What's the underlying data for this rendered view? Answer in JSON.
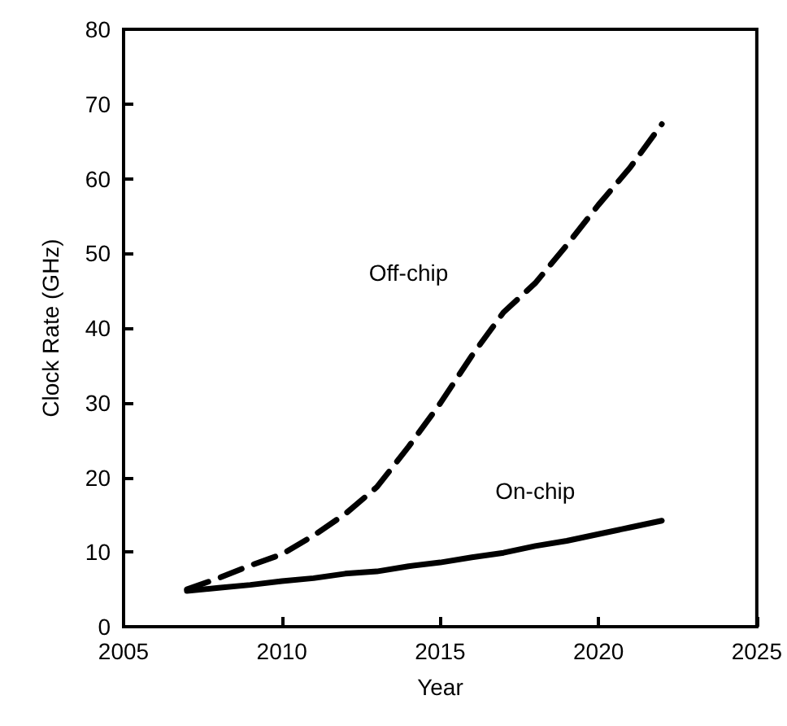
{
  "chart_data": {
    "type": "line",
    "xlabel": "Year",
    "ylabel": "Clock Rate (GHz)",
    "xlim": [
      2005,
      2025
    ],
    "xticks": [
      2005,
      2010,
      2015,
      2020,
      2025
    ],
    "ylim": [
      0,
      80
    ],
    "yticks": [
      0,
      10,
      20,
      30,
      40,
      50,
      60,
      70,
      80
    ],
    "grid": false,
    "marker": "none",
    "x": [
      2007,
      2008,
      2009,
      2010,
      2011,
      2012,
      2013,
      2014,
      2015,
      2016,
      2017,
      2018,
      2019,
      2020,
      2021,
      2022
    ],
    "series": [
      {
        "name": "Off-chip",
        "color": "#000000",
        "line_style": "dashed",
        "values": [
          5.0,
          6.5,
          8.2,
          9.7,
          12.2,
          15.1,
          18.7,
          24.1,
          29.9,
          36.3,
          42.1,
          46.0,
          51.1,
          56.5,
          61.5,
          67.3
        ]
      },
      {
        "name": "On-chip",
        "color": "#000000",
        "line_style": "solid",
        "values": [
          4.8,
          5.2,
          5.6,
          6.1,
          6.5,
          7.1,
          7.4,
          8.1,
          8.6,
          9.3,
          9.9,
          10.8,
          11.5,
          12.4,
          13.3,
          14.2
        ]
      }
    ]
  }
}
